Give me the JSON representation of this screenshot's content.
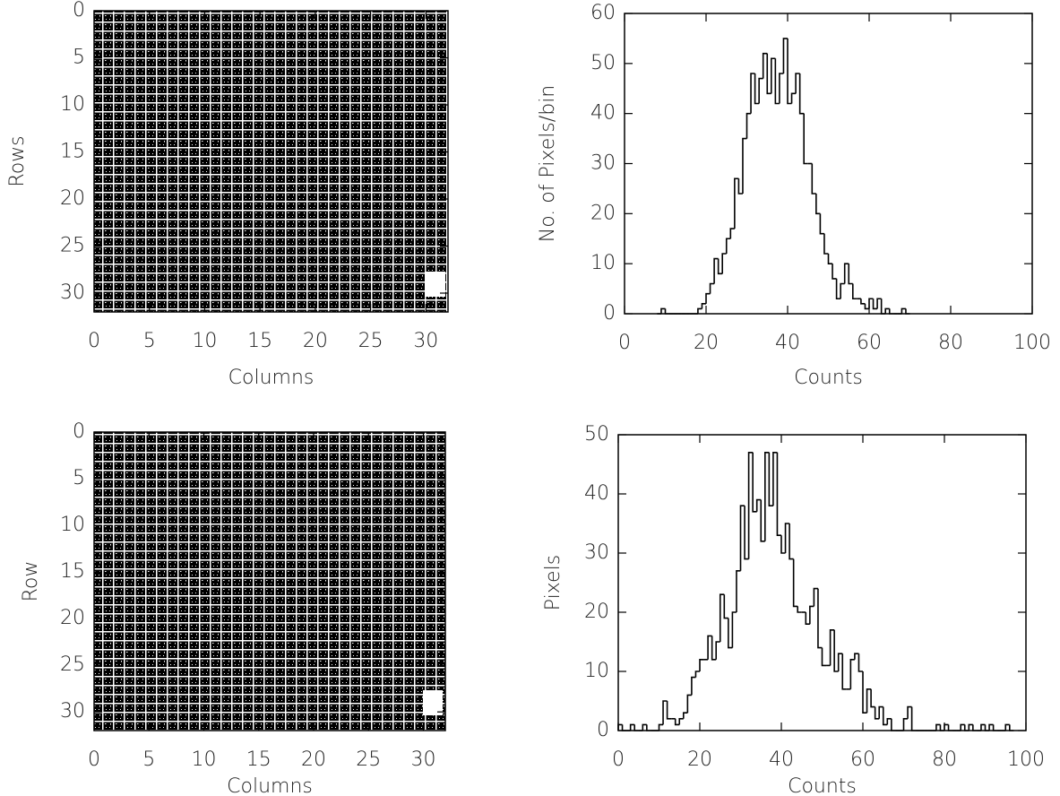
{
  "chart_data": [
    {
      "type": "image",
      "xlabel": "Columns",
      "ylabel": "Rows",
      "xlim": [
        0,
        32
      ],
      "ylim": [
        32,
        0
      ],
      "xticks": [
        0,
        5,
        10,
        15,
        20,
        25,
        30
      ],
      "yticks": [
        0,
        5,
        10,
        15,
        20,
        25,
        30
      ]
    },
    {
      "type": "histogram",
      "xlabel": "Counts",
      "ylabel": "No. of Pixels/bin",
      "xlim": [
        0,
        100
      ],
      "ylim": [
        0,
        60
      ],
      "xticks": [
        0,
        20,
        40,
        60,
        80,
        100
      ],
      "yticks": [
        0,
        10,
        20,
        30,
        40,
        50,
        60
      ],
      "color": "#000000",
      "bins": [
        8,
        9,
        10,
        11,
        12,
        13,
        14,
        15,
        16,
        17,
        18,
        19,
        20,
        21,
        22,
        23,
        24,
        25,
        26,
        27,
        28,
        29,
        30,
        31,
        32,
        33,
        34,
        35,
        36,
        37,
        38,
        39,
        40,
        41,
        42,
        43,
        44,
        45,
        46,
        47,
        48,
        49,
        50,
        51,
        52,
        53,
        54,
        55,
        56,
        57,
        58,
        59,
        60,
        61,
        62,
        63,
        64,
        65,
        66,
        67,
        68,
        69,
        70
      ],
      "values": [
        0,
        1,
        0,
        0,
        0,
        0,
        0,
        0,
        0,
        0,
        1,
        2,
        4,
        6,
        11,
        8,
        12,
        15,
        17,
        27,
        24,
        35,
        40,
        48,
        42,
        47,
        52,
        44,
        51,
        42,
        48,
        55,
        42,
        44,
        48,
        40,
        30,
        30,
        24,
        20,
        16,
        12,
        10,
        7,
        3,
        6,
        10,
        6,
        3,
        3,
        2,
        1,
        3,
        1,
        3,
        0,
        1,
        0,
        0,
        0,
        1,
        0
      ]
    },
    {
      "type": "image",
      "xlabel": "Columns",
      "ylabel": "Row",
      "xlim": [
        0,
        32
      ],
      "ylim": [
        32,
        0
      ],
      "xticks": [
        0,
        5,
        10,
        15,
        20,
        25,
        30
      ],
      "yticks": [
        0,
        5,
        10,
        15,
        20,
        25,
        30
      ]
    },
    {
      "type": "histogram",
      "xlabel": "Counts",
      "ylabel": "Pixels",
      "xlim": [
        0,
        100
      ],
      "ylim": [
        0,
        50
      ],
      "xticks": [
        0,
        20,
        40,
        60,
        80,
        100
      ],
      "yticks": [
        0,
        10,
        20,
        30,
        40,
        50
      ],
      "color": "#000000",
      "bins": [
        0,
        1,
        2,
        3,
        4,
        5,
        6,
        7,
        8,
        9,
        10,
        11,
        12,
        13,
        14,
        15,
        16,
        17,
        18,
        19,
        20,
        21,
        22,
        23,
        24,
        25,
        26,
        27,
        28,
        29,
        30,
        31,
        32,
        33,
        34,
        35,
        36,
        37,
        38,
        39,
        40,
        41,
        42,
        43,
        44,
        45,
        46,
        47,
        48,
        49,
        50,
        51,
        52,
        53,
        54,
        55,
        56,
        57,
        58,
        59,
        60,
        61,
        62,
        63,
        64,
        65,
        66,
        67,
        68,
        69,
        70,
        71,
        72,
        73,
        74,
        75,
        76,
        77,
        78,
        79,
        80,
        81,
        82,
        83,
        84,
        85,
        86,
        87,
        88,
        89,
        90,
        91,
        92,
        93,
        94,
        95,
        96,
        97
      ],
      "values": [
        1,
        0,
        0,
        1,
        0,
        0,
        1,
        0,
        0,
        0,
        1,
        5,
        2,
        2,
        1,
        2,
        3,
        6,
        9,
        10,
        12,
        12,
        16,
        12,
        15,
        23,
        19,
        14,
        20,
        27,
        38,
        29,
        47,
        37,
        39,
        32,
        47,
        38,
        47,
        33,
        30,
        35,
        29,
        21,
        20,
        20,
        18,
        21,
        24,
        14,
        11,
        11,
        17,
        10,
        13,
        7,
        7,
        12,
        13,
        10,
        3,
        7,
        4,
        2,
        4,
        1,
        2,
        0,
        0,
        0,
        2,
        4,
        0,
        0,
        0,
        0,
        0,
        0,
        1,
        0,
        1,
        0,
        0,
        0,
        1,
        0,
        1,
        0,
        0,
        1,
        0,
        1,
        0,
        0,
        0,
        1,
        0
      ]
    }
  ]
}
